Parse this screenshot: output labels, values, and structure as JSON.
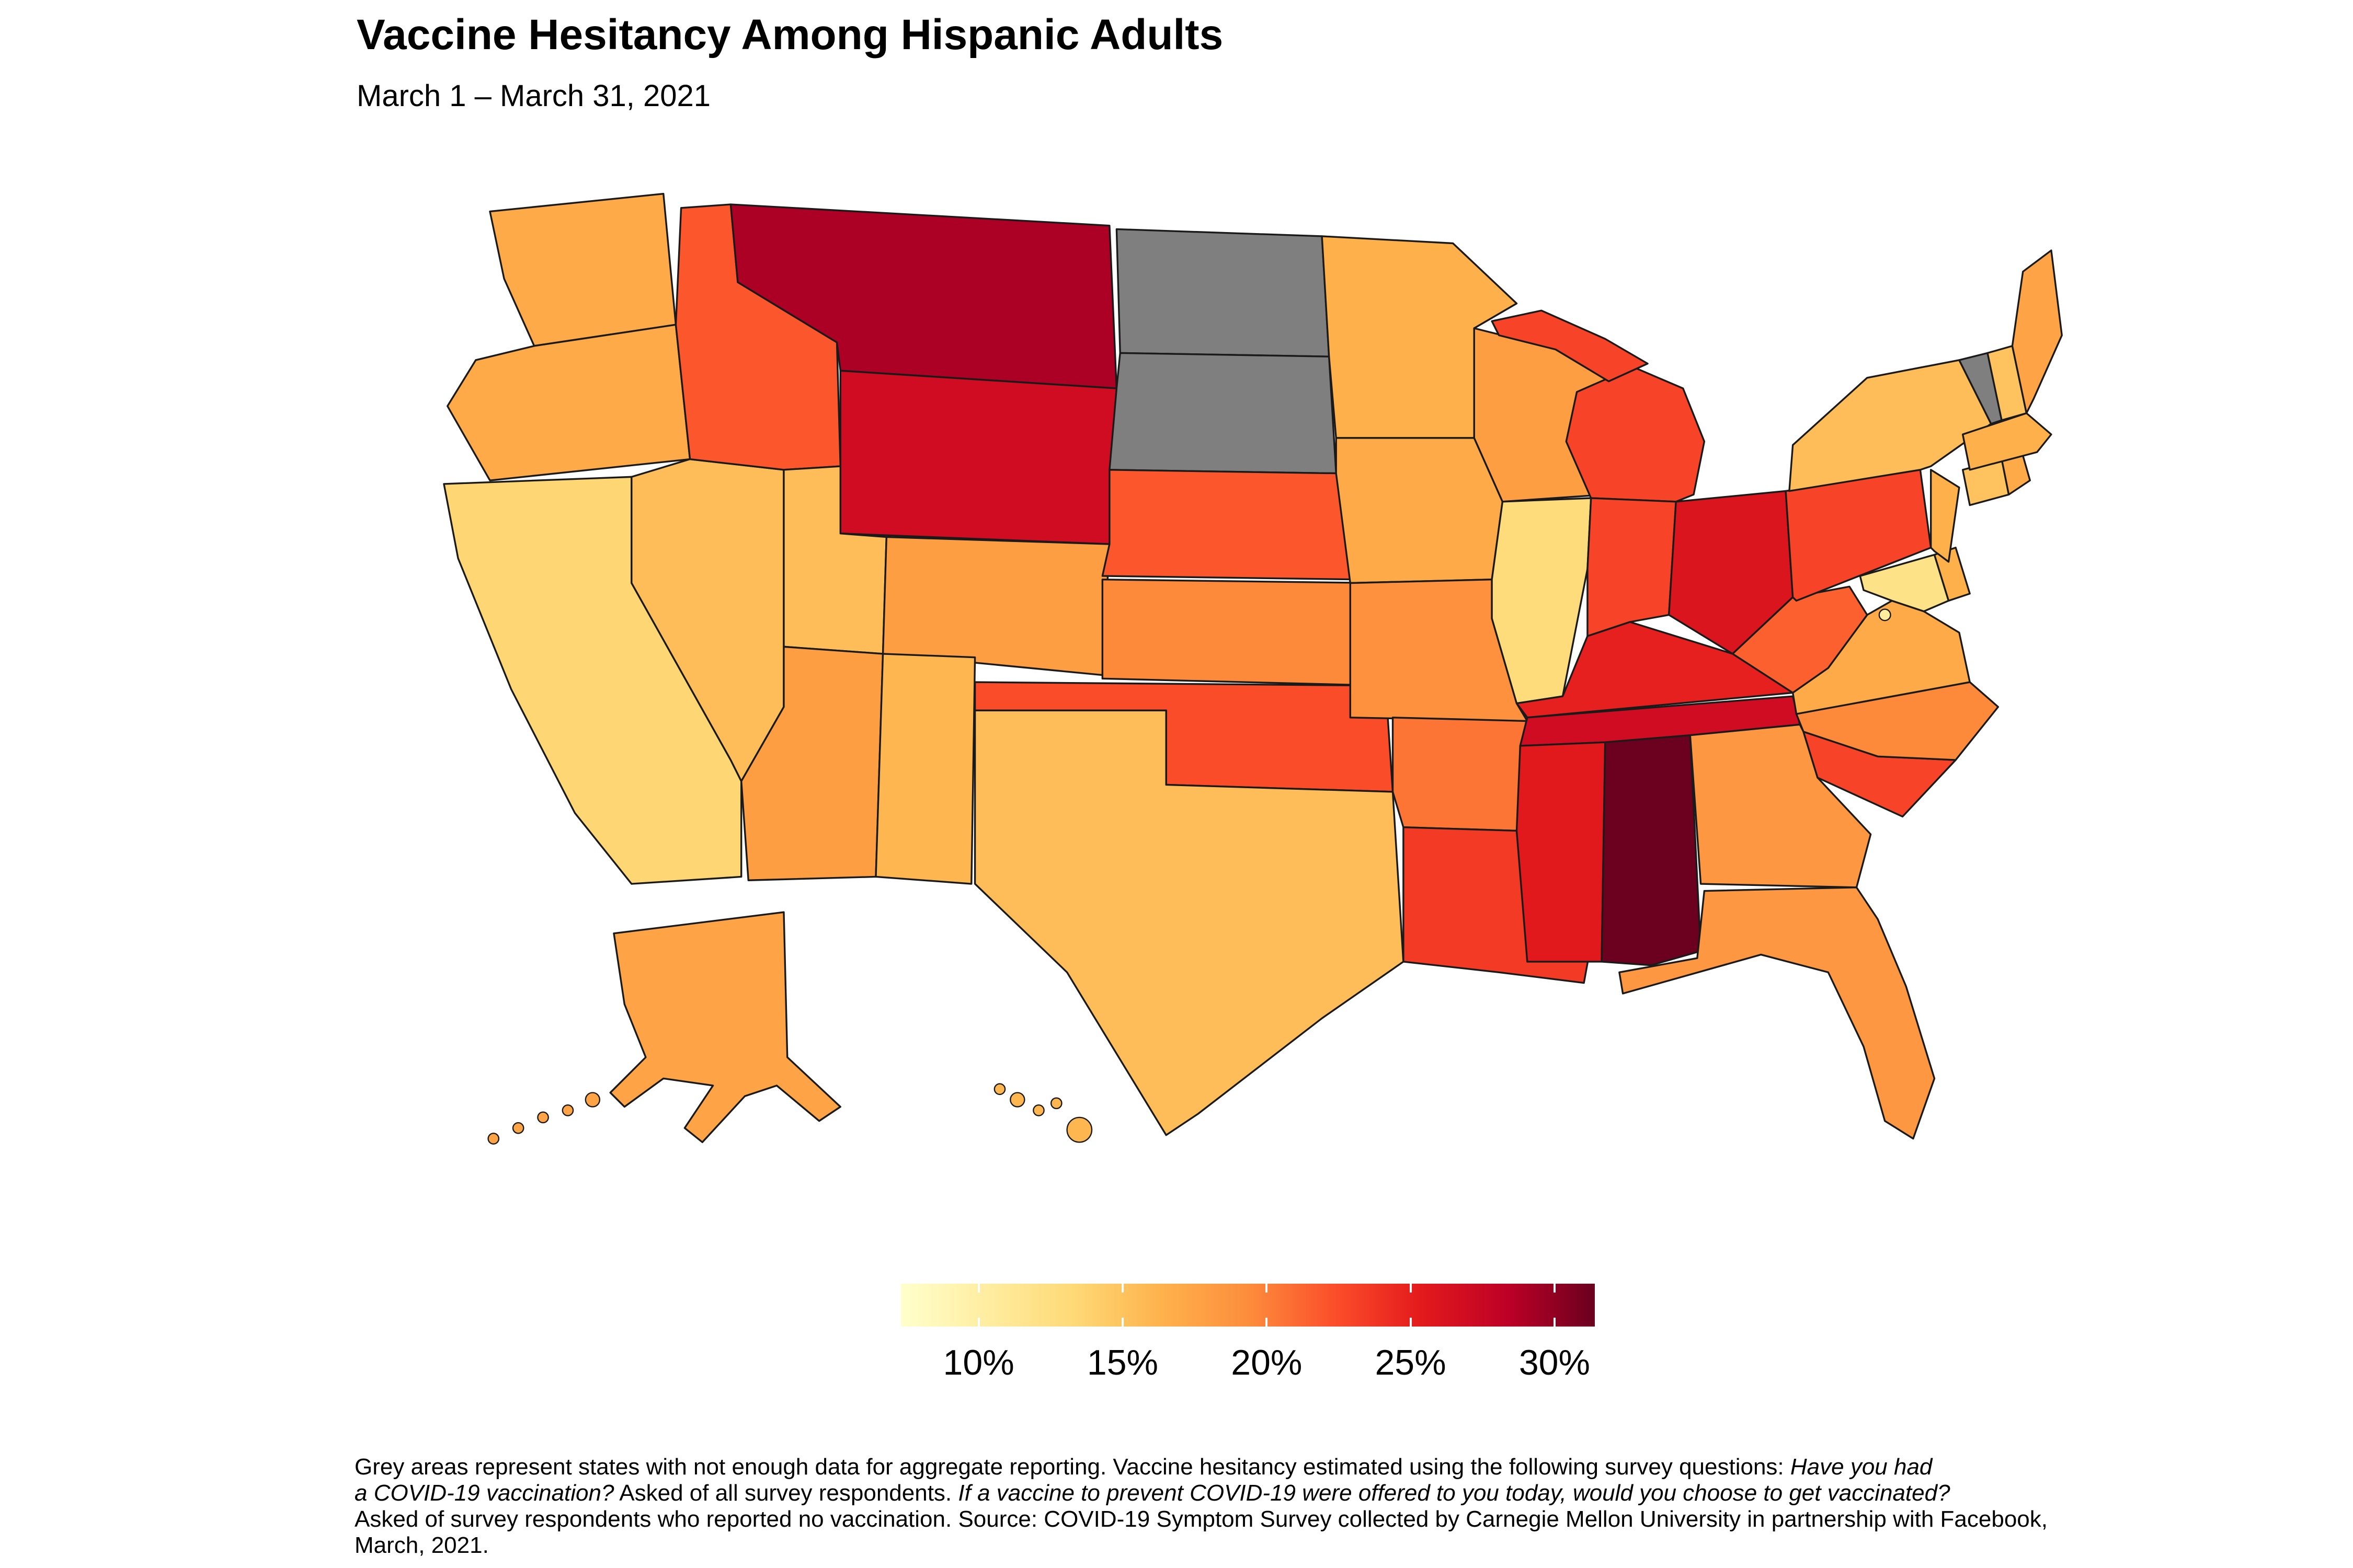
{
  "header": {
    "title": "Vaccine Hesitancy Among Hispanic Adults",
    "subtitle": "March 1 – March 31, 2021"
  },
  "chart_data": {
    "type": "choropleth",
    "region": "United States (states, Albers composite with Alaska and Hawaii insets)",
    "metric": "Estimated vaccine hesitancy among Hispanic adults (%)",
    "period": "March 1 – March 31, 2021",
    "no_data_color": "#7F7F7F",
    "border_color": "#1A1A1A",
    "background_color": "#FFFFFF",
    "color_scale": {
      "domain": [
        7.3,
        31.4
      ],
      "stops": [
        "#FFFFCC",
        "#FFEDA0",
        "#FED976",
        "#FEB24C",
        "#FD8D3C",
        "#FC4E2A",
        "#E31A1C",
        "#BD0026",
        "#6B001F"
      ]
    },
    "legend": {
      "tick_labels": [
        "10%",
        "15%",
        "20%",
        "25%",
        "30%"
      ],
      "tick_values": [
        10,
        15,
        20,
        25,
        30
      ]
    },
    "states": [
      {
        "abbr": "WA",
        "name": "Washington",
        "value": 17
      },
      {
        "abbr": "OR",
        "name": "Oregon",
        "value": 17
      },
      {
        "abbr": "CA",
        "name": "California",
        "value": 13.5
      },
      {
        "abbr": "NV",
        "name": "Nevada",
        "value": 15.5
      },
      {
        "abbr": "ID",
        "name": "Idaho",
        "value": 22
      },
      {
        "abbr": "MT",
        "name": "Montana",
        "value": 29
      },
      {
        "abbr": "WY",
        "name": "Wyoming",
        "value": 27
      },
      {
        "abbr": "UT",
        "name": "Utah",
        "value": 15.5
      },
      {
        "abbr": "CO",
        "name": "Colorado",
        "value": 18
      },
      {
        "abbr": "AZ",
        "name": "Arizona",
        "value": 18
      },
      {
        "abbr": "NM",
        "name": "New Mexico",
        "value": 16
      },
      {
        "abbr": "ND",
        "name": "North Dakota",
        "value": null
      },
      {
        "abbr": "SD",
        "name": "South Dakota",
        "value": null
      },
      {
        "abbr": "NE",
        "name": "Nebraska",
        "value": 22
      },
      {
        "abbr": "KS",
        "name": "Kansas",
        "value": 19.5
      },
      {
        "abbr": "OK",
        "name": "Oklahoma",
        "value": 22.5
      },
      {
        "abbr": "TX",
        "name": "Texas",
        "value": 15.5
      },
      {
        "abbr": "MN",
        "name": "Minnesota",
        "value": 16.5
      },
      {
        "abbr": "IA",
        "name": "Iowa",
        "value": 17
      },
      {
        "abbr": "MO",
        "name": "Missouri",
        "value": 19
      },
      {
        "abbr": "AR",
        "name": "Arkansas",
        "value": 20.5
      },
      {
        "abbr": "LA",
        "name": "Louisiana",
        "value": 23.5
      },
      {
        "abbr": "WI",
        "name": "Wisconsin",
        "value": 18
      },
      {
        "abbr": "IL",
        "name": "Illinois",
        "value": 13
      },
      {
        "abbr": "MI",
        "name": "Michigan",
        "value": 23
      },
      {
        "abbr": "IN",
        "name": "Indiana",
        "value": 23
      },
      {
        "abbr": "OH",
        "name": "Ohio",
        "value": 26
      },
      {
        "abbr": "KY",
        "name": "Kentucky",
        "value": 25
      },
      {
        "abbr": "TN",
        "name": "Tennessee",
        "value": 27
      },
      {
        "abbr": "MS",
        "name": "Mississippi",
        "value": 25.5
      },
      {
        "abbr": "AL",
        "name": "Alabama",
        "value": 31.5
      },
      {
        "abbr": "GA",
        "name": "Georgia",
        "value": 18.5
      },
      {
        "abbr": "FL",
        "name": "Florida",
        "value": 18.5
      },
      {
        "abbr": "SC",
        "name": "South Carolina",
        "value": 23
      },
      {
        "abbr": "NC",
        "name": "North Carolina",
        "value": 19.5
      },
      {
        "abbr": "VA",
        "name": "Virginia",
        "value": 17
      },
      {
        "abbr": "WV",
        "name": "West Virginia",
        "value": 21.5
      },
      {
        "abbr": "MD",
        "name": "Maryland",
        "value": 12
      },
      {
        "abbr": "DE",
        "name": "Delaware",
        "value": 16.5
      },
      {
        "abbr": "NJ",
        "name": "New Jersey",
        "value": 16.5
      },
      {
        "abbr": "PA",
        "name": "Pennsylvania",
        "value": 23
      },
      {
        "abbr": "NY",
        "name": "New York",
        "value": 15.5
      },
      {
        "abbr": "CT",
        "name": "Connecticut",
        "value": 15
      },
      {
        "abbr": "RI",
        "name": "Rhode Island",
        "value": 17
      },
      {
        "abbr": "MA",
        "name": "Massachusetts",
        "value": 16.5
      },
      {
        "abbr": "VT",
        "name": "Vermont",
        "value": null
      },
      {
        "abbr": "NH",
        "name": "New Hampshire",
        "value": 15
      },
      {
        "abbr": "ME",
        "name": "Maine",
        "value": 17.5
      },
      {
        "abbr": "AK",
        "name": "Alaska",
        "value": 17.5
      },
      {
        "abbr": "HI",
        "name": "Hawaii",
        "value": 16
      },
      {
        "abbr": "DC",
        "name": "District of Columbia",
        "value": 10.5
      }
    ]
  },
  "caption": {
    "lines": [
      [
        {
          "text": "Grey areas represent states with not enough data for aggregate reporting. Vaccine hesitancy estimated using the following survey questions: ",
          "italic": false
        },
        {
          "text": "Have you had",
          "italic": true
        }
      ],
      [
        {
          "text": "a COVID-19 vaccination?",
          "italic": true
        },
        {
          "text": " Asked of all survey respondents. ",
          "italic": false
        },
        {
          "text": "If a vaccine to prevent COVID-19 were offered to you today, would you choose to get vaccinated?",
          "italic": true
        }
      ],
      [
        {
          "text": "Asked of survey respondents who reported no vaccination. Source: COVID-19 Symptom Survey collected by Carnegie Mellon University in partnership with Facebook,",
          "italic": false
        }
      ],
      [
        {
          "text": "March, 2021.",
          "italic": false
        }
      ]
    ]
  }
}
